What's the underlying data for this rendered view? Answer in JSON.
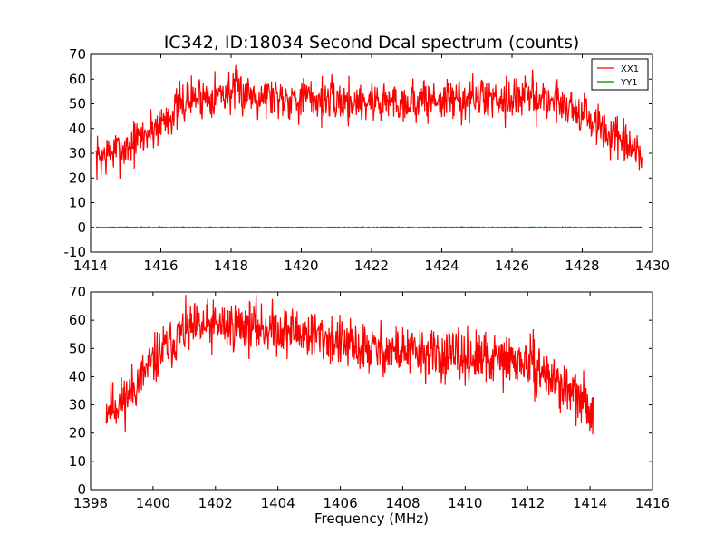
{
  "figure": {
    "title": "IC342, ID:18034 Second Dcal spectrum (counts)"
  },
  "chart_data": [
    {
      "type": "line",
      "title": "IC342, ID:18034 Second Dcal spectrum (counts)",
      "xlabel": "",
      "ylabel": "",
      "xlim": [
        1414,
        1430
      ],
      "ylim": [
        -10,
        70
      ],
      "xticks": [
        "1414",
        "1416",
        "1418",
        "1420",
        "1422",
        "1424",
        "1426",
        "1428",
        "1430"
      ],
      "yticks": [
        "-10",
        "0",
        "10",
        "20",
        "30",
        "40",
        "50",
        "60",
        "70"
      ],
      "legend": {
        "position": "top-right",
        "entries": [
          "XX1",
          "YY1"
        ]
      },
      "series": [
        {
          "name": "XX1",
          "color": "#ff0000",
          "x_range": [
            1414.15,
            1429.7
          ],
          "noise": 4.5,
          "seed": 7,
          "envelope": [
            [
              1414.15,
              28
            ],
            [
              1415.0,
              32
            ],
            [
              1415.8,
              40
            ],
            [
              1416.8,
              52
            ],
            [
              1418.0,
              55
            ],
            [
              1419.5,
              53
            ],
            [
              1421.0,
              51
            ],
            [
              1423.0,
              51
            ],
            [
              1425.0,
              52
            ],
            [
              1426.5,
              53
            ],
            [
              1427.4,
              51
            ],
            [
              1428.0,
              46
            ],
            [
              1428.7,
              38
            ],
            [
              1429.7,
              28
            ]
          ]
        },
        {
          "name": "YY1",
          "color": "#008000",
          "x_range": [
            1414.15,
            1429.7
          ],
          "noise": 0.1,
          "seed": 3,
          "envelope": [
            [
              1414.15,
              0
            ],
            [
              1429.7,
              0
            ]
          ]
        }
      ]
    },
    {
      "type": "line",
      "title": "",
      "xlabel": "Frequency (MHz)",
      "ylabel": "",
      "xlim": [
        1398,
        1416
      ],
      "ylim": [
        0,
        70
      ],
      "xticks": [
        "1398",
        "1400",
        "1402",
        "1404",
        "1406",
        "1408",
        "1410",
        "1412",
        "1414",
        "1416"
      ],
      "yticks": [
        "0",
        "10",
        "20",
        "30",
        "40",
        "50",
        "60",
        "70"
      ],
      "series": [
        {
          "name": "XX1",
          "color": "#ff0000",
          "x_range": [
            1398.5,
            1414.1
          ],
          "noise": 4.5,
          "seed": 11,
          "envelope": [
            [
              1398.5,
              29
            ],
            [
              1399.0,
              31
            ],
            [
              1399.5,
              38
            ],
            [
              1400.2,
              48
            ],
            [
              1401.0,
              56
            ],
            [
              1402.0,
              58
            ],
            [
              1403.0,
              58
            ],
            [
              1404.5,
              56
            ],
            [
              1405.5,
              54
            ],
            [
              1406.5,
              50
            ],
            [
              1408.0,
              49
            ],
            [
              1409.5,
              47
            ],
            [
              1411.0,
              46
            ],
            [
              1412.0,
              45
            ],
            [
              1412.7,
              40
            ],
            [
              1413.3,
              35
            ],
            [
              1414.1,
              28
            ]
          ]
        }
      ]
    }
  ]
}
